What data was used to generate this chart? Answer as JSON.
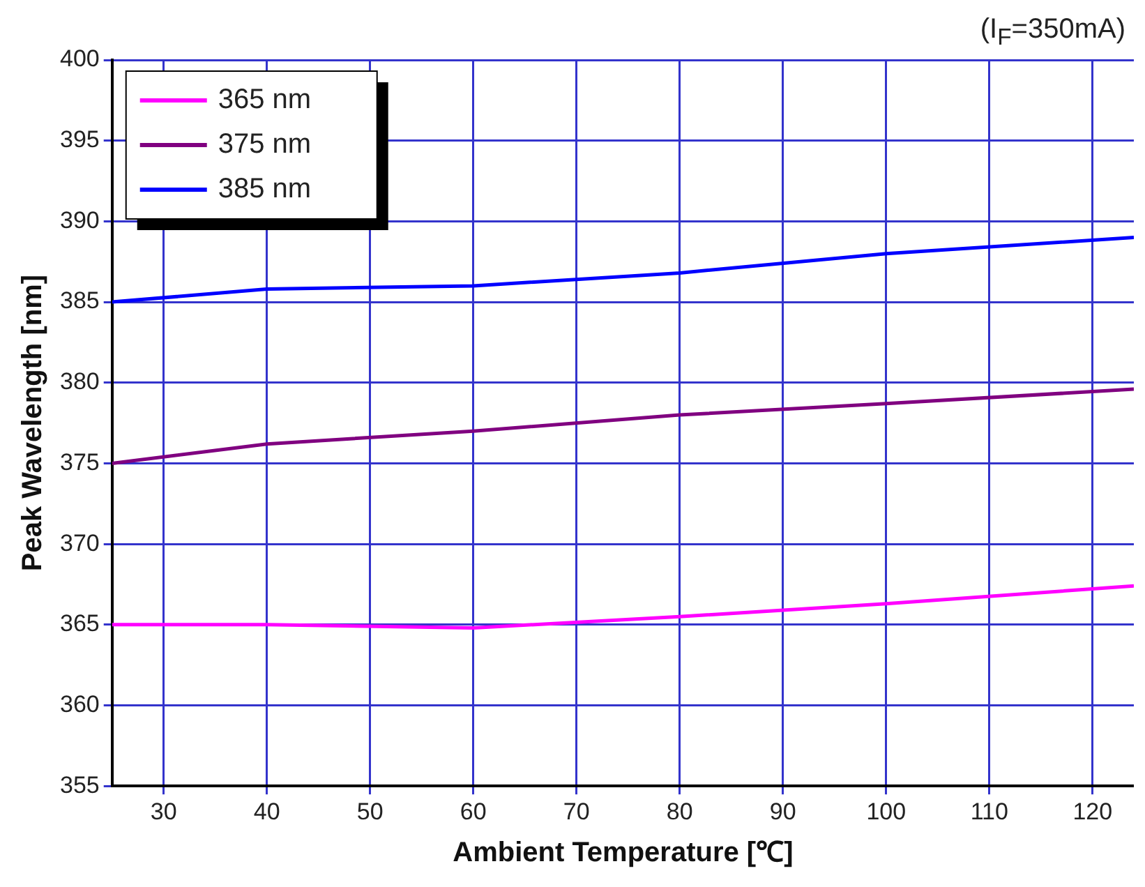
{
  "chart_data": {
    "type": "line",
    "xlabel": "Ambient Temperature [℃]",
    "ylabel": "Peak Wavelength [nm]",
    "annotations": [
      "(I$_{F}$=350mA)"
    ],
    "xlim": [
      25,
      124
    ],
    "xticks": [
      30,
      40,
      50,
      60,
      70,
      80,
      90,
      100,
      110,
      120
    ],
    "ylim": [
      355,
      400
    ],
    "yticks": [
      355,
      360,
      365,
      370,
      375,
      380,
      385,
      390,
      395,
      400
    ],
    "grid": true,
    "legend": "top left",
    "marker": "none",
    "line_style": "solid",
    "series": [
      {
        "name": "365 nm",
        "color": "#ff00ff",
        "x": [
          25,
          40,
          60,
          80,
          100,
          124
        ],
        "values": [
          365,
          365,
          364.8,
          365.5,
          366.3,
          367.4
        ]
      },
      {
        "name": "375 nm",
        "color": "#800080",
        "x": [
          25,
          40,
          60,
          80,
          100,
          124
        ],
        "values": [
          375,
          376.2,
          377,
          378,
          378.7,
          379.6
        ]
      },
      {
        "name": "385 nm",
        "color": "#0000ff",
        "x": [
          25,
          40,
          60,
          80,
          100,
          124
        ],
        "values": [
          385,
          385.8,
          386,
          386.8,
          388,
          389
        ]
      }
    ]
  }
}
